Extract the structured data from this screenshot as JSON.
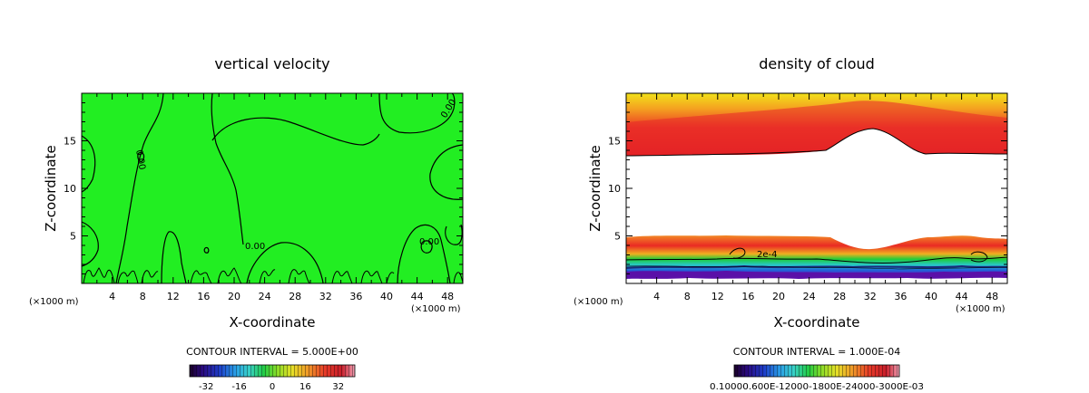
{
  "chart_data": [
    {
      "type": "heatmap",
      "title": "vertical velocity",
      "xlabel": "X-coordinate",
      "ylabel": "Z-coordinate",
      "x_unit_left": "(×1000 m)",
      "x_unit_right": "(×1000 m)",
      "x_ticks": [
        "4",
        "8",
        "12",
        "16",
        "20",
        "24",
        "28",
        "32",
        "36",
        "40",
        "44",
        "48"
      ],
      "y_ticks": [
        "5",
        "10",
        "15"
      ],
      "xlim": [
        0,
        50
      ],
      "ylim": [
        0,
        20
      ],
      "contour_labels": [
        "0.00",
        "0.00",
        "0.00",
        "0.00"
      ],
      "contour_interval": "CONTOUR INTERVAL = 5.000E+00",
      "colorbar_ticks": [
        "-32",
        "-16",
        "0",
        "16",
        "32"
      ],
      "fill_color": "#22ee22"
    },
    {
      "type": "heatmap",
      "title": "density of cloud",
      "xlabel": "X-coordinate",
      "ylabel": "Z-coordinate",
      "x_unit_left": "(×1000 m)",
      "x_unit_right": "(×1000 m)",
      "x_ticks": [
        "4",
        "8",
        "12",
        "16",
        "20",
        "24",
        "28",
        "32",
        "36",
        "40",
        "44",
        "48"
      ],
      "y_ticks": [
        "5",
        "10",
        "15"
      ],
      "xlim": [
        0,
        50
      ],
      "ylim": [
        0,
        20
      ],
      "contour_labels": [
        "2e-4"
      ],
      "contour_interval": "CONTOUR INTERVAL = 1.000E-04",
      "colorbar_text": "0.10000.600E-12000-1800E-24000-3000E-03"
    }
  ]
}
